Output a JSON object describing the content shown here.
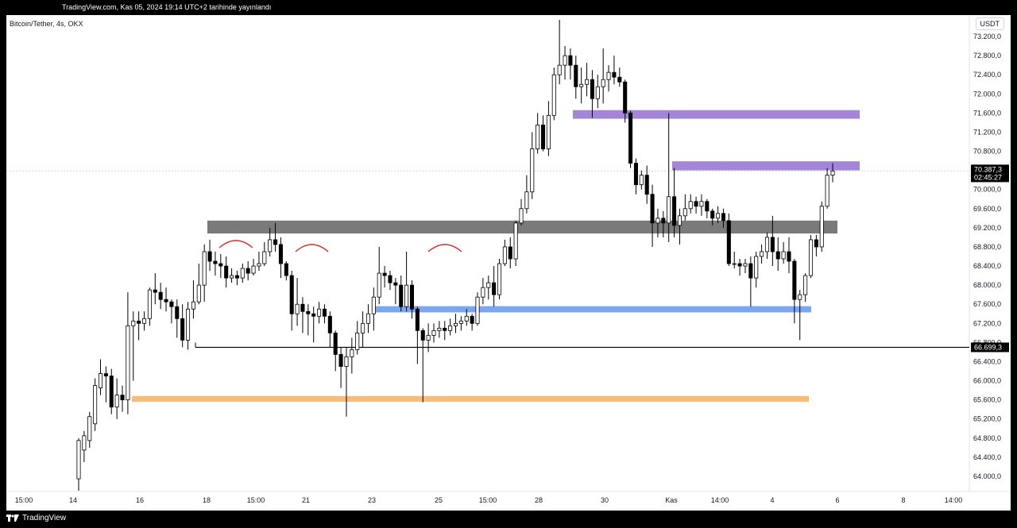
{
  "header": {
    "publish_note": "TradingView.com, Kas 05, 2024 19:14 UTC+2 tarihinde yayınlandı"
  },
  "chart_header": {
    "symbol": "Bitcoin/Tether, 4s, OKX",
    "currency": "USDT"
  },
  "footer": {
    "brand": "TradingView"
  },
  "chart_data": {
    "type": "candlestick",
    "title": "Bitcoin/Tether, 4s, OKX",
    "ylim": [
      63700,
      73550
    ],
    "y_ticks": [
      "73.200,0",
      "72.800,0",
      "72.400,0",
      "72.000,0",
      "71.600,0",
      "71.200,0",
      "70.800,0",
      "70.400,0",
      "70.000,0",
      "69.600,0",
      "69.200,0",
      "68.800,0",
      "68.400,0",
      "68.000,0",
      "67.600,0",
      "67.200,0",
      "66.800,0",
      "66.400,0",
      "66.000,0",
      "65.600,0",
      "65.200,0",
      "64.800,0",
      "64.400,0",
      "64.000,0"
    ],
    "y_tick_values": [
      73200,
      72800,
      72400,
      72000,
      71600,
      71200,
      70800,
      70400,
      70000,
      69600,
      69200,
      68800,
      68400,
      68000,
      67600,
      67200,
      66800,
      66400,
      66000,
      65600,
      65200,
      64800,
      64400,
      64000
    ],
    "x_ticks": [
      "15:00",
      "14",
      "16",
      "18",
      "15:00",
      "21",
      "23",
      "25",
      "15:00",
      "28",
      "30",
      "Kas",
      "14:00",
      "4",
      "6",
      "8",
      "14:00"
    ],
    "last_price_label": "70.387,3",
    "countdown_label": "02:45:27",
    "last_price": 70387.3,
    "support_level_label": "66.699,3",
    "support_level": 66699.3,
    "candles_ohlc": [
      [
        63950,
        64750,
        63700,
        64800
      ],
      [
        64550,
        64850,
        64300,
        64950
      ],
      [
        64750,
        65250,
        64600,
        65350
      ],
      [
        65100,
        65900,
        64950,
        66050
      ],
      [
        65850,
        66150,
        65700,
        66450
      ],
      [
        66150,
        66100,
        65550,
        66300
      ],
      [
        66100,
        65450,
        65300,
        66250
      ],
      [
        65450,
        65700,
        65200,
        66050
      ],
      [
        65700,
        65600,
        65350,
        65900
      ],
      [
        65600,
        67150,
        65300,
        67850
      ],
      [
        67150,
        67250,
        66000,
        67450
      ],
      [
        67250,
        67200,
        66850,
        67450
      ],
      [
        67200,
        67300,
        67050,
        67450
      ],
      [
        67300,
        67900,
        67150,
        67950
      ],
      [
        67900,
        67850,
        67600,
        68250
      ],
      [
        67850,
        67700,
        67500,
        68050
      ],
      [
        67700,
        67650,
        67450,
        67950
      ],
      [
        67650,
        67550,
        67200,
        67700
      ],
      [
        67550,
        67300,
        66900,
        67700
      ],
      [
        67300,
        66850,
        66700,
        67600
      ],
      [
        66850,
        67500,
        66650,
        67650
      ],
      [
        67500,
        67650,
        67300,
        68100
      ],
      [
        67650,
        68000,
        67600,
        68450
      ],
      [
        68000,
        68700,
        67650,
        68850
      ],
      [
        68700,
        68500,
        68300,
        68950
      ],
      [
        68500,
        68450,
        68200,
        68700
      ],
      [
        68450,
        68400,
        68150,
        68650
      ],
      [
        68400,
        68150,
        67950,
        68600
      ],
      [
        68150,
        68200,
        68050,
        68350
      ],
      [
        68200,
        68150,
        68000,
        68300
      ],
      [
        68150,
        68350,
        68050,
        68450
      ],
      [
        68350,
        68250,
        68100,
        68500
      ],
      [
        68250,
        68400,
        68200,
        68550
      ],
      [
        68400,
        68450,
        68300,
        68700
      ],
      [
        68450,
        68700,
        68400,
        68900
      ],
      [
        68700,
        68950,
        68600,
        69200
      ],
      [
        68950,
        68850,
        68700,
        69300
      ],
      [
        68850,
        68450,
        68150,
        69000
      ],
      [
        68450,
        68200,
        68100,
        68500
      ],
      [
        68200,
        67400,
        67050,
        68300
      ],
      [
        67400,
        67600,
        67150,
        68150
      ],
      [
        67600,
        67450,
        67000,
        67750
      ],
      [
        67450,
        67400,
        66950,
        67600
      ],
      [
        67400,
        67350,
        66800,
        67550
      ],
      [
        67350,
        67500,
        67200,
        67650
      ],
      [
        67500,
        67350,
        67200,
        67600
      ],
      [
        67350,
        67000,
        66700,
        67450
      ],
      [
        67000,
        66550,
        66200,
        67050
      ],
      [
        66550,
        66300,
        65850,
        66700
      ],
      [
        66300,
        66500,
        65250,
        66700
      ],
      [
        66500,
        66650,
        66150,
        66900
      ],
      [
        66650,
        67000,
        66550,
        67250
      ],
      [
        67000,
        67200,
        66700,
        67450
      ],
      [
        67200,
        67400,
        67000,
        67600
      ],
      [
        67400,
        67750,
        67050,
        67950
      ],
      [
        67750,
        68250,
        67600,
        68800
      ],
      [
        68250,
        68200,
        67950,
        68400
      ],
      [
        68200,
        68050,
        67900,
        68300
      ],
      [
        68050,
        68000,
        67600,
        68150
      ],
      [
        68000,
        67550,
        67450,
        68200
      ],
      [
        67550,
        68000,
        67450,
        68700
      ],
      [
        68000,
        67500,
        67300,
        68100
      ],
      [
        67500,
        67050,
        66350,
        67550
      ],
      [
        67050,
        66850,
        65550,
        67100
      ],
      [
        66850,
        66950,
        66600,
        67200
      ],
      [
        66950,
        67050,
        66800,
        67200
      ],
      [
        67050,
        67100,
        66900,
        67250
      ],
      [
        67100,
        67050,
        66850,
        67250
      ],
      [
        67050,
        67150,
        66950,
        67300
      ],
      [
        67150,
        67200,
        67000,
        67400
      ],
      [
        67200,
        67250,
        67050,
        67350
      ],
      [
        67250,
        67350,
        67150,
        67500
      ],
      [
        67350,
        67200,
        67050,
        67400
      ],
      [
        67200,
        67750,
        67150,
        67850
      ],
      [
        67750,
        67950,
        67600,
        68150
      ],
      [
        67950,
        68050,
        67700,
        68200
      ],
      [
        68050,
        67800,
        67550,
        68400
      ],
      [
        67800,
        68450,
        67700,
        68550
      ],
      [
        68450,
        68800,
        68400,
        68950
      ],
      [
        68800,
        68550,
        68350,
        69000
      ],
      [
        68550,
        69300,
        68400,
        69350
      ],
      [
        69300,
        69600,
        69250,
        69800
      ],
      [
        69600,
        69950,
        69500,
        70300
      ],
      [
        69950,
        70850,
        69800,
        71200
      ],
      [
        70850,
        71350,
        70750,
        71600
      ],
      [
        71350,
        70850,
        70800,
        71550
      ],
      [
        70850,
        71550,
        70700,
        71850
      ],
      [
        71550,
        72400,
        71450,
        72550
      ],
      [
        72400,
        72600,
        72200,
        73550
      ],
      [
        72600,
        72800,
        72300,
        73000
      ],
      [
        72800,
        72600,
        72300,
        72950
      ],
      [
        72600,
        72150,
        71900,
        72800
      ],
      [
        72150,
        72200,
        71800,
        72550
      ],
      [
        72200,
        72300,
        71950,
        72650
      ],
      [
        72300,
        71900,
        71500,
        72500
      ],
      [
        71900,
        72150,
        71700,
        72400
      ],
      [
        72150,
        72300,
        71800,
        72950
      ],
      [
        72300,
        72450,
        72050,
        72600
      ],
      [
        72450,
        72350,
        72200,
        72800
      ],
      [
        72350,
        72250,
        72150,
        72550
      ],
      [
        72250,
        71600,
        71400,
        72300
      ],
      [
        71600,
        70550,
        70450,
        71650
      ],
      [
        70550,
        70100,
        69900,
        70650
      ],
      [
        70100,
        70300,
        70000,
        70400
      ],
      [
        70300,
        69900,
        69700,
        70500
      ],
      [
        69900,
        69300,
        68800,
        70100
      ],
      [
        69300,
        69400,
        69000,
        69600
      ],
      [
        69400,
        69300,
        69000,
        69550
      ],
      [
        69300,
        69850,
        68900,
        71600
      ],
      [
        69850,
        69250,
        69000,
        70450
      ],
      [
        69250,
        69450,
        68850,
        69600
      ],
      [
        69450,
        69600,
        69350,
        69900
      ],
      [
        69600,
        69750,
        69500,
        69900
      ],
      [
        69750,
        69650,
        69500,
        69850
      ],
      [
        69650,
        69750,
        69450,
        69900
      ],
      [
        69750,
        69550,
        69400,
        69800
      ],
      [
        69550,
        69400,
        69250,
        69600
      ],
      [
        69400,
        69500,
        69300,
        69650
      ],
      [
        69500,
        69350,
        69200,
        69600
      ],
      [
        69350,
        68450,
        68400,
        69500
      ],
      [
        68450,
        68450,
        68350,
        68700
      ],
      [
        68450,
        68400,
        68200,
        68550
      ],
      [
        68400,
        68450,
        68250,
        68550
      ],
      [
        68450,
        68150,
        67550,
        68600
      ],
      [
        68150,
        68600,
        67950,
        68700
      ],
      [
        68600,
        68700,
        68450,
        68850
      ],
      [
        68700,
        69000,
        68550,
        69100
      ],
      [
        69000,
        68700,
        68400,
        69450
      ],
      [
        68700,
        68550,
        68300,
        69000
      ],
      [
        68550,
        68700,
        68450,
        68900
      ],
      [
        68700,
        68500,
        68250,
        69000
      ],
      [
        68500,
        67700,
        67200,
        68550
      ],
      [
        67700,
        67800,
        66850,
        67900
      ],
      [
        67800,
        68200,
        67650,
        68250
      ],
      [
        68200,
        68950,
        68150,
        69050
      ],
      [
        68950,
        68800,
        68600,
        69050
      ],
      [
        68800,
        69650,
        68700,
        69750
      ],
      [
        69650,
        70300,
        69600,
        70450
      ],
      [
        70300,
        70387.3,
        70150,
        70550
      ]
    ]
  }
}
